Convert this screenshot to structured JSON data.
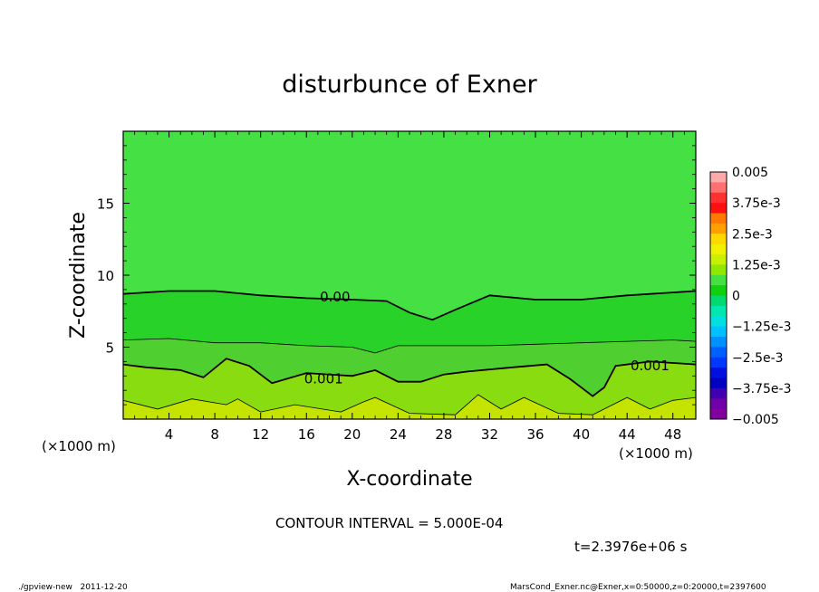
{
  "chart_data": {
    "type": "heatmap",
    "title": "disturbunce of Exner",
    "xlabel": "X-coordinate",
    "ylabel": "Z-coordinate",
    "x_unit_note": "(×1000 m)",
    "y_unit_note": "(×1000 m)",
    "xlim": [
      0,
      50
    ],
    "ylim": [
      0,
      20
    ],
    "x_ticks": [
      "4",
      "8",
      "12",
      "16",
      "20",
      "24",
      "28",
      "32",
      "36",
      "40",
      "44",
      "48"
    ],
    "x_tick_values": [
      4,
      8,
      12,
      16,
      20,
      24,
      28,
      32,
      36,
      40,
      44,
      48
    ],
    "y_ticks": [
      "5",
      "10",
      "15"
    ],
    "y_tick_values": [
      5,
      10,
      15
    ],
    "colorbar": {
      "labels": [
        "0.005",
        "3.75e-3",
        "2.5e-3",
        "1.25e-3",
        "0",
        "−1.25e-3",
        "−2.5e-3",
        "−3.75e-3",
        "−0.005"
      ],
      "values": [
        0.005,
        0.00375,
        0.0025,
        0.00125,
        0,
        -0.00125,
        -0.0025,
        -0.00375,
        -0.005
      ]
    },
    "contour_labels": [
      {
        "text": "0.00",
        "x": 18.5,
        "z": 8.5
      },
      {
        "text": "0.001",
        "x": 17.5,
        "z": 2.8
      },
      {
        "text": "0.001",
        "x": 46,
        "z": 3.7
      }
    ],
    "contour_zero_line": [
      [
        0,
        8.7
      ],
      [
        4,
        8.9
      ],
      [
        8,
        8.9
      ],
      [
        12,
        8.6
      ],
      [
        16,
        8.4
      ],
      [
        20,
        8.3
      ],
      [
        23,
        8.2
      ],
      [
        25,
        7.4
      ],
      [
        27,
        6.9
      ],
      [
        29,
        7.6
      ],
      [
        32,
        8.6
      ],
      [
        36,
        8.3
      ],
      [
        40,
        8.3
      ],
      [
        44,
        8.6
      ],
      [
        48,
        8.8
      ],
      [
        50,
        8.9
      ]
    ],
    "contour_0005_line": [
      [
        0,
        5.5
      ],
      [
        4,
        5.6
      ],
      [
        8,
        5.3
      ],
      [
        12,
        5.3
      ],
      [
        16,
        5.1
      ],
      [
        20,
        5.0
      ],
      [
        22,
        4.6
      ],
      [
        24,
        5.1
      ],
      [
        28,
        5.1
      ],
      [
        32,
        5.1
      ],
      [
        36,
        5.2
      ],
      [
        40,
        5.3
      ],
      [
        44,
        5.4
      ],
      [
        48,
        5.5
      ],
      [
        50,
        5.4
      ]
    ],
    "contour_001_line": [
      [
        0,
        3.8
      ],
      [
        2,
        3.6
      ],
      [
        5,
        3.4
      ],
      [
        7,
        2.9
      ],
      [
        9,
        4.2
      ],
      [
        11,
        3.7
      ],
      [
        13,
        2.5
      ],
      [
        16,
        3.2
      ],
      [
        20,
        3.0
      ],
      [
        22,
        3.4
      ],
      [
        24,
        2.6
      ],
      [
        26,
        2.6
      ],
      [
        28,
        3.1
      ],
      [
        30,
        3.3
      ],
      [
        34,
        3.6
      ],
      [
        37,
        3.8
      ],
      [
        39,
        2.8
      ],
      [
        41,
        1.6
      ],
      [
        42,
        2.2
      ],
      [
        43,
        3.7
      ],
      [
        46,
        4.0
      ],
      [
        50,
        3.8
      ]
    ],
    "contour_0015_line": [
      [
        0,
        1.3
      ],
      [
        3,
        0.7
      ],
      [
        6,
        1.4
      ],
      [
        9,
        1.0
      ],
      [
        10,
        1.4
      ],
      [
        12,
        0.5
      ],
      [
        15,
        1.0
      ],
      [
        19,
        0.5
      ],
      [
        21,
        1.2
      ],
      [
        22,
        1.5
      ],
      [
        25,
        0.4
      ],
      [
        29,
        0.3
      ],
      [
        31,
        1.7
      ],
      [
        33,
        0.7
      ],
      [
        35,
        1.5
      ],
      [
        38,
        0.4
      ],
      [
        41,
        0.3
      ],
      [
        44,
        1.5
      ],
      [
        46,
        0.7
      ],
      [
        48,
        1.3
      ],
      [
        50,
        1.5
      ]
    ],
    "contour_interval_text": "CONTOUR INTERVAL = 5.000E-04",
    "time_text": "t=2.3976e+06 s",
    "colors": {
      "top_green": "#40e040",
      "mid_green": "#20d020",
      "green_band": "#3ccc3c",
      "yellow_green": "#90e010",
      "yellow": "#c8e800"
    }
  },
  "footer": {
    "left": "./gpview-new   2011-12-20",
    "right": "MarsCond_Exner.nc@Exner,x=0:50000,z=0:20000,t=2397600"
  }
}
